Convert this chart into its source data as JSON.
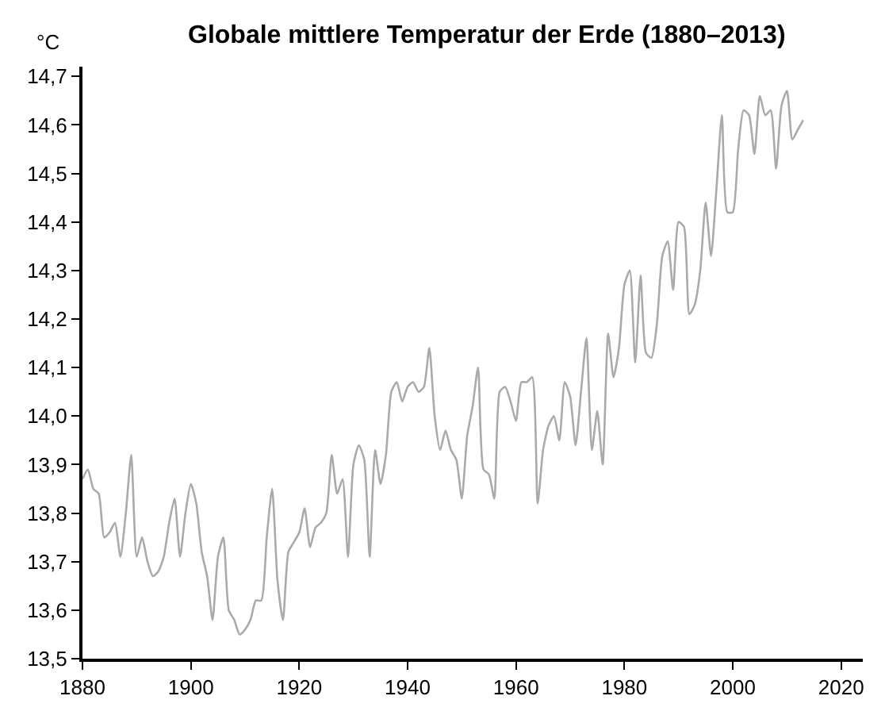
{
  "chart_data": {
    "type": "line",
    "title": "Globale mittlere Temperatur der Erde (1880–2013)",
    "ylabel": "°C",
    "x": [
      1880,
      1881,
      1882,
      1883,
      1884,
      1885,
      1886,
      1887,
      1888,
      1889,
      1890,
      1891,
      1892,
      1893,
      1894,
      1895,
      1896,
      1897,
      1898,
      1899,
      1900,
      1901,
      1902,
      1903,
      1904,
      1905,
      1906,
      1907,
      1908,
      1909,
      1910,
      1911,
      1912,
      1913,
      1914,
      1915,
      1916,
      1917,
      1918,
      1919,
      1920,
      1921,
      1922,
      1923,
      1924,
      1925,
      1926,
      1927,
      1928,
      1929,
      1930,
      1931,
      1932,
      1933,
      1934,
      1935,
      1936,
      1937,
      1938,
      1939,
      1940,
      1941,
      1942,
      1943,
      1944,
      1945,
      1946,
      1947,
      1948,
      1949,
      1950,
      1951,
      1952,
      1953,
      1954,
      1955,
      1956,
      1957,
      1958,
      1959,
      1960,
      1961,
      1962,
      1963,
      1964,
      1965,
      1966,
      1967,
      1968,
      1969,
      1970,
      1971,
      1972,
      1973,
      1974,
      1975,
      1976,
      1977,
      1978,
      1979,
      1980,
      1981,
      1982,
      1983,
      1984,
      1985,
      1986,
      1987,
      1988,
      1989,
      1990,
      1991,
      1992,
      1993,
      1994,
      1995,
      1996,
      1997,
      1998,
      1999,
      2000,
      2001,
      2002,
      2003,
      2004,
      2005,
      2006,
      2007,
      2008,
      2009,
      2010,
      2011,
      2012,
      2013
    ],
    "series": [
      {
        "color": "#aaaaaa",
        "values": [
          13.87,
          13.89,
          13.85,
          13.84,
          13.75,
          13.76,
          13.78,
          13.71,
          13.8,
          13.92,
          13.71,
          13.75,
          13.7,
          13.67,
          13.68,
          13.71,
          13.78,
          13.83,
          13.71,
          13.8,
          13.86,
          13.82,
          13.72,
          13.67,
          13.58,
          13.71,
          13.75,
          13.6,
          13.58,
          13.55,
          13.56,
          13.58,
          13.62,
          13.62,
          13.75,
          13.85,
          13.66,
          13.58,
          13.72,
          13.74,
          13.76,
          13.81,
          13.73,
          13.77,
          13.78,
          13.8,
          13.92,
          13.84,
          13.87,
          13.71,
          13.9,
          13.94,
          13.91,
          13.71,
          13.93,
          13.86,
          13.92,
          14.05,
          14.07,
          14.03,
          14.06,
          14.07,
          14.05,
          14.06,
          14.14,
          14.0,
          13.93,
          13.97,
          13.93,
          13.91,
          13.83,
          13.96,
          14.02,
          14.1,
          13.89,
          13.88,
          13.83,
          14.05,
          14.06,
          14.03,
          13.99,
          14.07,
          14.07,
          14.08,
          13.82,
          13.93,
          13.98,
          14.0,
          13.95,
          14.07,
          14.04,
          13.94,
          14.05,
          14.16,
          13.93,
          14.01,
          13.9,
          14.17,
          14.08,
          14.14,
          14.27,
          14.3,
          14.11,
          14.29,
          14.13,
          14.12,
          14.19,
          14.33,
          14.36,
          14.26,
          14.4,
          14.39,
          14.21,
          14.23,
          14.3,
          14.44,
          14.33,
          14.47,
          14.62,
          14.42,
          14.42,
          14.55,
          14.63,
          14.62,
          14.54,
          14.66,
          14.62,
          14.63,
          14.51,
          14.64,
          14.67,
          14.57,
          14.59,
          14.61
        ]
      }
    ],
    "xlim": [
      1880,
      2024
    ],
    "xticks": [
      1880,
      1900,
      1920,
      1940,
      1960,
      1980,
      2000,
      2020
    ],
    "ylim": [
      13.5,
      14.72
    ],
    "yticks": [
      {
        "value": 13.5,
        "label": "13,5"
      },
      {
        "value": 13.6,
        "label": "13,6"
      },
      {
        "value": 13.7,
        "label": "13,7"
      },
      {
        "value": 13.8,
        "label": "13,8"
      },
      {
        "value": 13.9,
        "label": "13,9"
      },
      {
        "value": 14.0,
        "label": "14,0"
      },
      {
        "value": 14.1,
        "label": "14,1"
      },
      {
        "value": 14.2,
        "label": "14,2"
      },
      {
        "value": 14.3,
        "label": "14,3"
      },
      {
        "value": 14.4,
        "label": "14,4"
      },
      {
        "value": 14.5,
        "label": "14,5"
      },
      {
        "value": 14.6,
        "label": "14,6"
      },
      {
        "value": 14.7,
        "label": "14,7"
      }
    ],
    "grid": false,
    "marker": "none",
    "line_style": "solid"
  }
}
